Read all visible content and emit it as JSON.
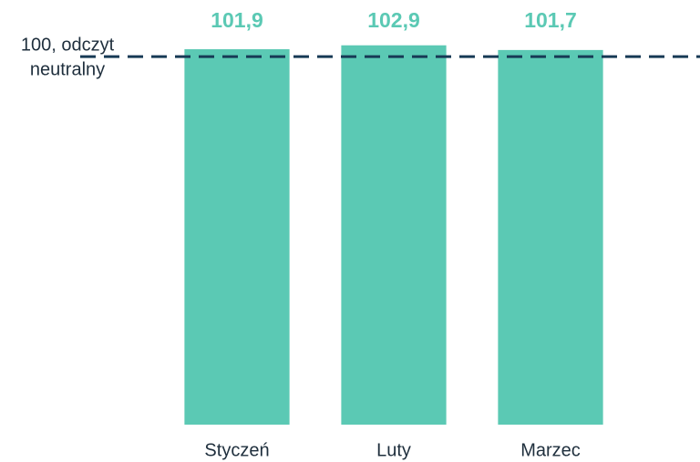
{
  "chart_data": {
    "type": "bar",
    "categories": [
      "Styczeń",
      "Luty",
      "Marzec"
    ],
    "values": [
      101.9,
      102.9,
      101.7
    ],
    "value_labels": [
      "101,9",
      "102,9",
      "101,7"
    ],
    "color": "#5bc9b4",
    "ylim": [
      6,
      104
    ],
    "reference_line": {
      "value": 100,
      "label_lines": [
        "100, odczyt",
        "neutralny"
      ],
      "color": "#173a55"
    }
  }
}
